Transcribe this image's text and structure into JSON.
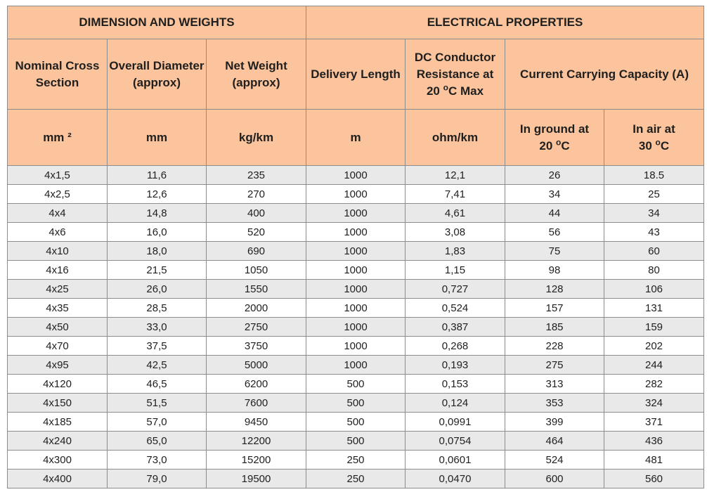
{
  "header": {
    "group_dims": "DIMENSION AND WEIGHTS",
    "group_elec": "ELECTRICAL PROPERTIES",
    "col_nominal": "Nominal Cross Section",
    "col_diameter": "Overall Diameter (approx)",
    "col_weight": "Net Weight (approx)",
    "col_delivery": "Delivery Length",
    "col_dc_line1": "DC Conductor",
    "col_dc_line2": "Resistance at",
    "col_dc_line3_pre": "20 ",
    "col_dc_line3_sup": "o",
    "col_dc_line3_post": "C Max",
    "col_current": "Current Carrying Capacity (A)",
    "unit_nominal": "mm ²",
    "unit_diameter": "mm",
    "unit_weight": "kg/km",
    "unit_delivery": "m",
    "unit_resistance": "ohm/km",
    "ground_line1": "In ground at",
    "ground_line2_pre": "20 ",
    "ground_line2_sup": "o",
    "ground_line2_post": "C",
    "air_line1": "In air at",
    "air_line2_pre": "30 ",
    "air_line2_sup": "o",
    "air_line2_post": "C"
  },
  "rows": [
    [
      "4x1,5",
      "11,6",
      "235",
      "1000",
      "12,1",
      "26",
      "18.5"
    ],
    [
      "4x2,5",
      "12,6",
      "270",
      "1000",
      "7,41",
      "34",
      "25"
    ],
    [
      "4x4",
      "14,8",
      "400",
      "1000",
      "4,61",
      "44",
      "34"
    ],
    [
      "4x6",
      "16,0",
      "520",
      "1000",
      "3,08",
      "56",
      "43"
    ],
    [
      "4x10",
      "18,0",
      "690",
      "1000",
      "1,83",
      "75",
      "60"
    ],
    [
      "4x16",
      "21,5",
      "1050",
      "1000",
      "1,15",
      "98",
      "80"
    ],
    [
      "4x25",
      "26,0",
      "1550",
      "1000",
      "0,727",
      "128",
      "106"
    ],
    [
      "4x35",
      "28,5",
      "2000",
      "1000",
      "0,524",
      "157",
      "131"
    ],
    [
      "4x50",
      "33,0",
      "2750",
      "1000",
      "0,387",
      "185",
      "159"
    ],
    [
      "4x70",
      "37,5",
      "3750",
      "1000",
      "0,268",
      "228",
      "202"
    ],
    [
      "4x95",
      "42,5",
      "5000",
      "1000",
      "0,193",
      "275",
      "244"
    ],
    [
      "4x120",
      "46,5",
      "6200",
      "500",
      "0,153",
      "313",
      "282"
    ],
    [
      "4x150",
      "51,5",
      "7600",
      "500",
      "0,124",
      "353",
      "324"
    ],
    [
      "4x185",
      "57,0",
      "9450",
      "500",
      "0,0991",
      "399",
      "371"
    ],
    [
      "4x240",
      "65,0",
      "12200",
      "500",
      "0,0754",
      "464",
      "436"
    ],
    [
      "4x300",
      "73,0",
      "15200",
      "250",
      "0,0601",
      "524",
      "481"
    ],
    [
      "4x400",
      "79,0",
      "19500",
      "250",
      "0,0470",
      "600",
      "560"
    ]
  ],
  "colors": {
    "header_bg": "#fbc49c",
    "stripe_bg": "#e9e9e9",
    "border": "#8c8c8c"
  }
}
